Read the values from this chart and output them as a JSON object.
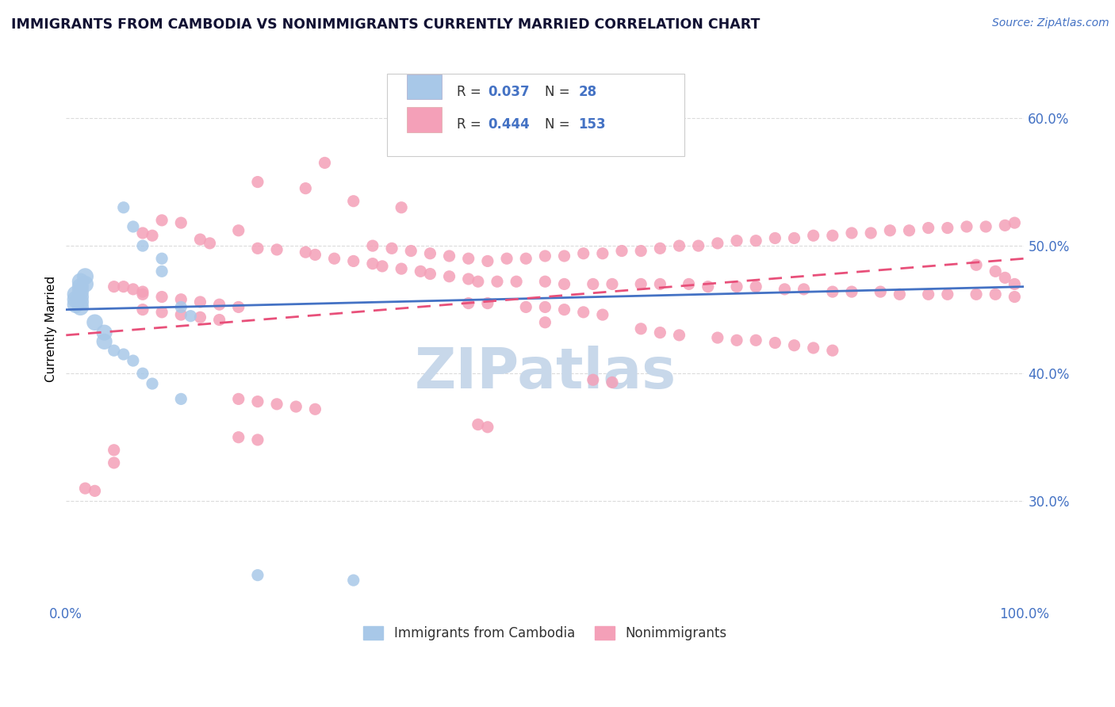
{
  "title": "IMMIGRANTS FROM CAMBODIA VS NONIMMIGRANTS CURRENTLY MARRIED CORRELATION CHART",
  "source": "Source: ZipAtlas.com",
  "ylabel": "Currently Married",
  "xlim": [
    0.0,
    1.0
  ],
  "ylim": [
    0.22,
    0.65
  ],
  "yticks": [
    0.3,
    0.4,
    0.5,
    0.6
  ],
  "ytick_labels": [
    "30.0%",
    "40.0%",
    "50.0%",
    "60.0%"
  ],
  "xticks": [
    0.0,
    1.0
  ],
  "xtick_labels": [
    "0.0%",
    "100.0%"
  ],
  "legend_label1": "Immigrants from Cambodia",
  "legend_label2": "Nonimmigrants",
  "blue_color": "#a8c8e8",
  "pink_color": "#f4a0b8",
  "blue_line_color": "#4472c4",
  "pink_line_color": "#e8507a",
  "axis_color": "#4472c4",
  "grid_color": "#d8d8d8",
  "watermark_color": "#c8d8ea",
  "blue_scatter": [
    [
      0.01,
      0.462
    ],
    [
      0.01,
      0.458
    ],
    [
      0.01,
      0.454
    ],
    [
      0.015,
      0.468
    ],
    [
      0.015,
      0.472
    ],
    [
      0.015,
      0.464
    ],
    [
      0.015,
      0.46
    ],
    [
      0.015,
      0.456
    ],
    [
      0.015,
      0.452
    ],
    [
      0.02,
      0.476
    ],
    [
      0.02,
      0.47
    ],
    [
      0.06,
      0.53
    ],
    [
      0.07,
      0.515
    ],
    [
      0.08,
      0.5
    ],
    [
      0.1,
      0.49
    ],
    [
      0.1,
      0.48
    ],
    [
      0.12,
      0.452
    ],
    [
      0.13,
      0.445
    ],
    [
      0.03,
      0.44
    ],
    [
      0.04,
      0.432
    ],
    [
      0.04,
      0.425
    ],
    [
      0.05,
      0.418
    ],
    [
      0.06,
      0.415
    ],
    [
      0.07,
      0.41
    ],
    [
      0.08,
      0.4
    ],
    [
      0.09,
      0.392
    ],
    [
      0.12,
      0.38
    ],
    [
      0.2,
      0.242
    ],
    [
      0.3,
      0.238
    ]
  ],
  "pink_scatter": [
    [
      0.47,
      0.6
    ],
    [
      0.27,
      0.565
    ],
    [
      0.2,
      0.55
    ],
    [
      0.25,
      0.545
    ],
    [
      0.3,
      0.535
    ],
    [
      0.35,
      0.53
    ],
    [
      0.1,
      0.52
    ],
    [
      0.12,
      0.518
    ],
    [
      0.18,
      0.512
    ],
    [
      0.08,
      0.51
    ],
    [
      0.09,
      0.508
    ],
    [
      0.14,
      0.505
    ],
    [
      0.15,
      0.502
    ],
    [
      0.2,
      0.498
    ],
    [
      0.22,
      0.497
    ],
    [
      0.25,
      0.495
    ],
    [
      0.26,
      0.493
    ],
    [
      0.28,
      0.49
    ],
    [
      0.3,
      0.488
    ],
    [
      0.32,
      0.486
    ],
    [
      0.33,
      0.484
    ],
    [
      0.35,
      0.482
    ],
    [
      0.37,
      0.48
    ],
    [
      0.38,
      0.478
    ],
    [
      0.4,
      0.476
    ],
    [
      0.42,
      0.474
    ],
    [
      0.43,
      0.472
    ],
    [
      0.45,
      0.472
    ],
    [
      0.47,
      0.472
    ],
    [
      0.5,
      0.472
    ],
    [
      0.52,
      0.47
    ],
    [
      0.55,
      0.47
    ],
    [
      0.57,
      0.47
    ],
    [
      0.6,
      0.47
    ],
    [
      0.62,
      0.47
    ],
    [
      0.65,
      0.47
    ],
    [
      0.67,
      0.468
    ],
    [
      0.7,
      0.468
    ],
    [
      0.72,
      0.468
    ],
    [
      0.75,
      0.466
    ],
    [
      0.77,
      0.466
    ],
    [
      0.8,
      0.464
    ],
    [
      0.82,
      0.464
    ],
    [
      0.85,
      0.464
    ],
    [
      0.87,
      0.462
    ],
    [
      0.9,
      0.462
    ],
    [
      0.92,
      0.462
    ],
    [
      0.95,
      0.462
    ],
    [
      0.97,
      0.462
    ],
    [
      0.99,
      0.46
    ],
    [
      0.05,
      0.468
    ],
    [
      0.06,
      0.468
    ],
    [
      0.07,
      0.466
    ],
    [
      0.08,
      0.464
    ],
    [
      0.08,
      0.462
    ],
    [
      0.1,
      0.46
    ],
    [
      0.12,
      0.458
    ],
    [
      0.14,
      0.456
    ],
    [
      0.16,
      0.454
    ],
    [
      0.18,
      0.452
    ],
    [
      0.32,
      0.5
    ],
    [
      0.34,
      0.498
    ],
    [
      0.36,
      0.496
    ],
    [
      0.38,
      0.494
    ],
    [
      0.4,
      0.492
    ],
    [
      0.42,
      0.49
    ],
    [
      0.44,
      0.488
    ],
    [
      0.46,
      0.49
    ],
    [
      0.48,
      0.49
    ],
    [
      0.5,
      0.492
    ],
    [
      0.52,
      0.492
    ],
    [
      0.54,
      0.494
    ],
    [
      0.56,
      0.494
    ],
    [
      0.58,
      0.496
    ],
    [
      0.6,
      0.496
    ],
    [
      0.62,
      0.498
    ],
    [
      0.64,
      0.5
    ],
    [
      0.66,
      0.5
    ],
    [
      0.68,
      0.502
    ],
    [
      0.7,
      0.504
    ],
    [
      0.72,
      0.504
    ],
    [
      0.74,
      0.506
    ],
    [
      0.76,
      0.506
    ],
    [
      0.78,
      0.508
    ],
    [
      0.8,
      0.508
    ],
    [
      0.82,
      0.51
    ],
    [
      0.84,
      0.51
    ],
    [
      0.86,
      0.512
    ],
    [
      0.88,
      0.512
    ],
    [
      0.9,
      0.514
    ],
    [
      0.92,
      0.514
    ],
    [
      0.94,
      0.515
    ],
    [
      0.96,
      0.515
    ],
    [
      0.98,
      0.516
    ],
    [
      0.99,
      0.518
    ],
    [
      0.95,
      0.485
    ],
    [
      0.97,
      0.48
    ],
    [
      0.98,
      0.475
    ],
    [
      0.99,
      0.47
    ],
    [
      0.08,
      0.45
    ],
    [
      0.1,
      0.448
    ],
    [
      0.12,
      0.446
    ],
    [
      0.14,
      0.444
    ],
    [
      0.16,
      0.442
    ],
    [
      0.42,
      0.455
    ],
    [
      0.44,
      0.455
    ],
    [
      0.48,
      0.452
    ],
    [
      0.5,
      0.452
    ],
    [
      0.52,
      0.45
    ],
    [
      0.54,
      0.448
    ],
    [
      0.56,
      0.446
    ],
    [
      0.6,
      0.435
    ],
    [
      0.62,
      0.432
    ],
    [
      0.64,
      0.43
    ],
    [
      0.68,
      0.428
    ],
    [
      0.7,
      0.426
    ],
    [
      0.72,
      0.426
    ],
    [
      0.74,
      0.424
    ],
    [
      0.76,
      0.422
    ],
    [
      0.78,
      0.42
    ],
    [
      0.8,
      0.418
    ],
    [
      0.5,
      0.44
    ],
    [
      0.55,
      0.395
    ],
    [
      0.57,
      0.393
    ],
    [
      0.18,
      0.38
    ],
    [
      0.2,
      0.378
    ],
    [
      0.22,
      0.376
    ],
    [
      0.24,
      0.374
    ],
    [
      0.26,
      0.372
    ],
    [
      0.43,
      0.36
    ],
    [
      0.44,
      0.358
    ],
    [
      0.18,
      0.35
    ],
    [
      0.2,
      0.348
    ],
    [
      0.05,
      0.33
    ],
    [
      0.05,
      0.34
    ],
    [
      0.02,
      0.31
    ],
    [
      0.03,
      0.308
    ]
  ],
  "blue_trendline_x": [
    0.0,
    1.0
  ],
  "blue_trendline_y": [
    0.45,
    0.468
  ],
  "pink_trendline_x": [
    0.0,
    1.0
  ],
  "pink_trendline_y": [
    0.43,
    0.49
  ]
}
